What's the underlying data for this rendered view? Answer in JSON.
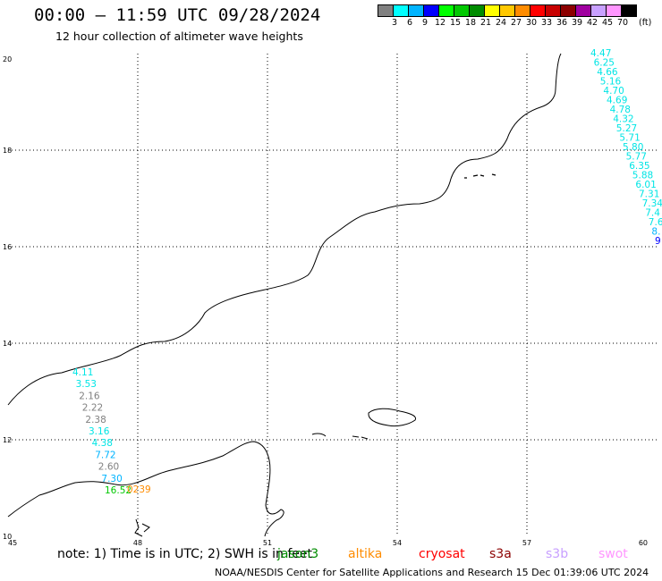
{
  "header": {
    "title": "00:00 – 11:59 UTC 09/28/2024",
    "subtitle": "12 hour collection of altimeter wave heights"
  },
  "colorbar": {
    "unit": "(ft)",
    "swatches": [
      {
        "label": "3",
        "color": "#808080"
      },
      {
        "label": "6",
        "color": "#00ffff"
      },
      {
        "label": "9",
        "color": "#00b4ff"
      },
      {
        "label": "12",
        "color": "#0000ff"
      },
      {
        "label": "15",
        "color": "#00ff00"
      },
      {
        "label": "18",
        "color": "#00c800"
      },
      {
        "label": "21",
        "color": "#008c00"
      },
      {
        "label": "24",
        "color": "#ffff00"
      },
      {
        "label": "27",
        "color": "#ffc800"
      },
      {
        "label": "30",
        "color": "#ff8c00"
      },
      {
        "label": "33",
        "color": "#ff0000"
      },
      {
        "label": "36",
        "color": "#c80000"
      },
      {
        "label": "39",
        "color": "#8c0000"
      },
      {
        "label": "42",
        "color": "#a000a0"
      },
      {
        "label": "45",
        "color": "#c8a0ff"
      },
      {
        "label": "70",
        "color": "#ff96ff"
      },
      {
        "label": "",
        "color": "#000000"
      }
    ]
  },
  "map": {
    "lon_min": 45,
    "lon_max": 60,
    "lat_min": 10,
    "lat_max": 20,
    "x_ticks": [
      "45",
      "48",
      "51",
      "54",
      "57",
      "60"
    ],
    "y_ticks": [
      "20",
      "18",
      "16",
      "14",
      "12",
      "10"
    ],
    "track_east": [
      {
        "text": "4.47",
        "color": "#00e5e5"
      },
      {
        "text": "6.25",
        "color": "#00e5e5"
      },
      {
        "text": "4.66",
        "color": "#00e5e5"
      },
      {
        "text": "5.16",
        "color": "#00e5e5"
      },
      {
        "text": "4.70",
        "color": "#00e5e5"
      },
      {
        "text": "4.69",
        "color": "#00e5e5"
      },
      {
        "text": "4.78",
        "color": "#00e5e5"
      },
      {
        "text": "4.32",
        "color": "#00e5e5"
      },
      {
        "text": "5.27",
        "color": "#00e5e5"
      },
      {
        "text": "5.71",
        "color": "#00e5e5"
      },
      {
        "text": "5.80",
        "color": "#00e5e5"
      },
      {
        "text": "5.77",
        "color": "#00e5e5"
      },
      {
        "text": "6.35",
        "color": "#00e5e5"
      },
      {
        "text": "5.88",
        "color": "#00e5e5"
      },
      {
        "text": "6.01",
        "color": "#00e5e5"
      },
      {
        "text": "7.31",
        "color": "#00e5e5"
      },
      {
        "text": "7.34",
        "color": "#00e5e5"
      },
      {
        "text": "7.4",
        "color": "#00e5e5"
      },
      {
        "text": "7.6",
        "color": "#00e5e5"
      },
      {
        "text": "8.",
        "color": "#00b4ff"
      },
      {
        "text": "9",
        "color": "#0000ff"
      }
    ],
    "track_west": [
      {
        "text": "4.11",
        "color": "#00e5e5"
      },
      {
        "text": "3.53",
        "color": "#00e5e5"
      },
      {
        "text": "2.16",
        "color": "#808080"
      },
      {
        "text": "2.22",
        "color": "#808080"
      },
      {
        "text": "2.38",
        "color": "#808080"
      },
      {
        "text": "3.16",
        "color": "#00e5e5"
      },
      {
        "text": "4.38",
        "color": "#00e5e5"
      },
      {
        "text": "7.72",
        "color": "#00b4ff"
      },
      {
        "text": "2.60",
        "color": "#808080"
      },
      {
        "text": "7.30",
        "color": "#00b4ff"
      },
      {
        "text": "16.52",
        "color": "#00c800"
      },
      {
        "text": "0239",
        "color": "#ff8c00"
      }
    ]
  },
  "footer": {
    "note": "note: 1) Time is in UTC; 2) SWH is in feet",
    "satellites": [
      {
        "name": "jason3",
        "color": "#008c00"
      },
      {
        "name": "altika",
        "color": "#ff8c00"
      },
      {
        "name": "cryosat",
        "color": "#ff0000"
      },
      {
        "name": "s3a",
        "color": "#8c0000"
      },
      {
        "name": "s3b",
        "color": "#c8a0ff"
      },
      {
        "name": "swot",
        "color": "#ff96ff"
      }
    ],
    "credit": "NOAA/NESDIS Center for Satellite Applications and Research    15 Dec 01:39:06 UTC 2024"
  }
}
